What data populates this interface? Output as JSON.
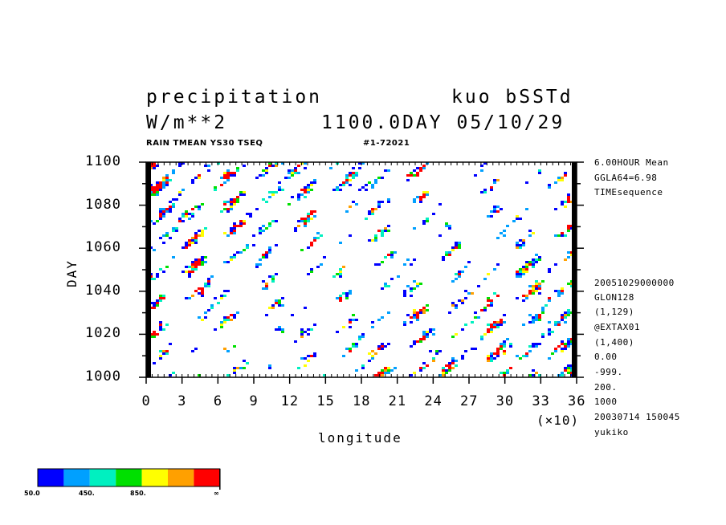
{
  "header": {
    "title_left": "precipitation",
    "title_right": "kuo bSSTd",
    "units": "W/m**2",
    "time": "1100.0DAY 05/10/29",
    "sub_left": "RAIN TMEAN YS30 TSEQ",
    "sub_right": "#1-72021"
  },
  "side_info": {
    "top": [
      "6.00HOUR Mean",
      "GGLA64=6.98",
      "TIMEsequence"
    ],
    "bottom": [
      "20051029000000",
      "GLON128",
      "(1,129)",
      "@EXTAX01",
      "(1,400)",
      "0.00",
      "-999.",
      "200.",
      "1000",
      "20030714 150045",
      "yukiko"
    ]
  },
  "legend": {
    "colors": [
      "#0000ff",
      "#00a0ff",
      "#00f0c0",
      "#00e000",
      "#ffff00",
      "#ffa000",
      "#ff0000"
    ],
    "labels": [
      "50.0",
      "450.",
      "850.",
      "∞"
    ]
  },
  "chart_data": {
    "type": "heatmap",
    "title": "precipitation",
    "xlabel": "longitude",
    "ylabel": "DAY",
    "x_multiplier": "(×10)",
    "xlim": [
      0,
      36
    ],
    "ylim": [
      1000,
      1100
    ],
    "x_ticks": [
      "0",
      "3",
      "6",
      "9",
      "12",
      "15",
      "18",
      "21",
      "24",
      "27",
      "30",
      "33",
      "36"
    ],
    "y_ticks": [
      "1000",
      "1020",
      "1040",
      "1060",
      "1080",
      "1100"
    ],
    "colorbar_levels": [
      50,
      450,
      850
    ],
    "pattern": "eastward-propagating precipitation bands"
  }
}
